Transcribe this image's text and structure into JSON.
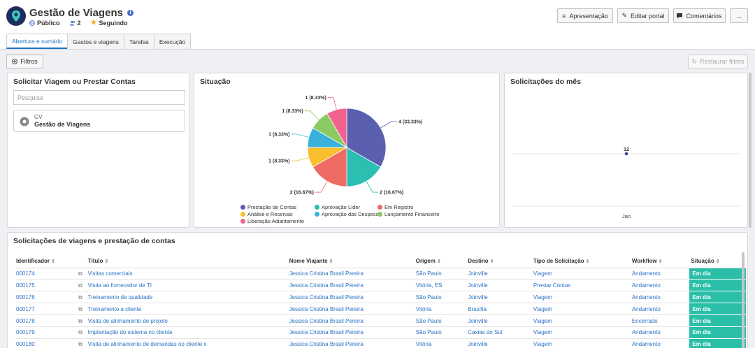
{
  "header": {
    "title": "Gestão de Viagens",
    "visibility": "Público",
    "members": "2",
    "follow": "Seguindo"
  },
  "toolbar": {
    "presentation": "Apresentação",
    "edit_portal": "Editar portal",
    "comments": "Comentários",
    "more": "..."
  },
  "tabs": [
    "Abertura e sumário",
    "Gastos e viagens",
    "Tarefas",
    "Execução"
  ],
  "filters": {
    "label": "Filtros",
    "restore": "Restaurar filtros"
  },
  "request_panel": {
    "title": "Solicitar Viagem ou Prestar Contas",
    "search_placeholder": "Pesquise",
    "card_code": "GV",
    "card_name": "Gestão de Viagens"
  },
  "status_panel": {
    "title": "Situação"
  },
  "monthly_panel": {
    "title": "Solicitações do mês"
  },
  "chart_data": [
    {
      "type": "pie",
      "title": "Situação",
      "slices": [
        {
          "name": "Prestação de Contas",
          "value": 4,
          "label": "4 (33.33%)",
          "color": "#5b5fb0"
        },
        {
          "name": "Aprovação Líder",
          "value": 2,
          "label": "2 (16.67%)",
          "color": "#2bbfb1"
        },
        {
          "name": "Em Registro",
          "value": 2,
          "label": "2 (16.67%)",
          "color": "#ee6b64"
        },
        {
          "name": "Análise e Reservas",
          "value": 1,
          "label": "1 (8.33%)",
          "color": "#f7be2e"
        },
        {
          "name": "Aprovação das Despesas",
          "value": 1,
          "label": "1 (8.33%)",
          "color": "#38b2dd"
        },
        {
          "name": "Lançamento Financeiro",
          "value": 1,
          "label": "1 (8.33%)",
          "color": "#8bc963"
        },
        {
          "name": "Liberação Adiantamento",
          "value": 1,
          "label": "1 (8.33%)",
          "color": "#f2628e"
        }
      ]
    },
    {
      "type": "scatter",
      "title": "Solicitações do mês",
      "categories": [
        "Jan"
      ],
      "values": [
        12
      ]
    }
  ],
  "table": {
    "title": "Solicitações de viagens e prestação de contas",
    "columns": [
      "Identificador",
      "Título",
      "Nome Viajante",
      "Origem",
      "Destino",
      "Tipo de Solicitação",
      "Workflow",
      "Situação"
    ],
    "rows": [
      [
        "000174",
        "Visitas comerciais",
        "Jessica Cristina Brasil Pereira",
        "São Paulo",
        "Joinville",
        "Viagem",
        "Andamento",
        "Em dia"
      ],
      [
        "000175",
        "Visita ao fornecedor de TI",
        "Jessica Cristina Brasil Pereira",
        "Vitória, ES",
        "Joinville",
        "Prestar Contas",
        "Andamento",
        "Em dia"
      ],
      [
        "000176",
        "Treinamento de qualidade",
        "Jessica Cristina Brasil Pereira",
        "São Paulo",
        "Joinville",
        "Viagem",
        "Andamento",
        "Em dia"
      ],
      [
        "000177",
        "Treinamento a cliente",
        "Jessica Cristina Brasil Pereira",
        "Vitória",
        "Brasília",
        "Viagem",
        "Andamento",
        "Em dia"
      ],
      [
        "000178",
        "Visita de alinhamento de projeto",
        "Jessica Cristina Brasil Pereira",
        "São Paulo",
        "Joinville",
        "Viagem",
        "Encerrado",
        "Em dia"
      ],
      [
        "000179",
        "Implantação do sistema no cliente",
        "Jessica Cristina Brasil Pereira",
        "São Paulo",
        "Caxias do Sul",
        "Viagem",
        "Andamento",
        "Em dia"
      ],
      [
        "000180",
        "Visita de alinhamento de demandas no cliente x",
        "Jessica Cristina Brasil Pereira",
        "Vitória",
        "Joinville",
        "Viagem",
        "Andamento",
        "Em dia"
      ]
    ]
  }
}
